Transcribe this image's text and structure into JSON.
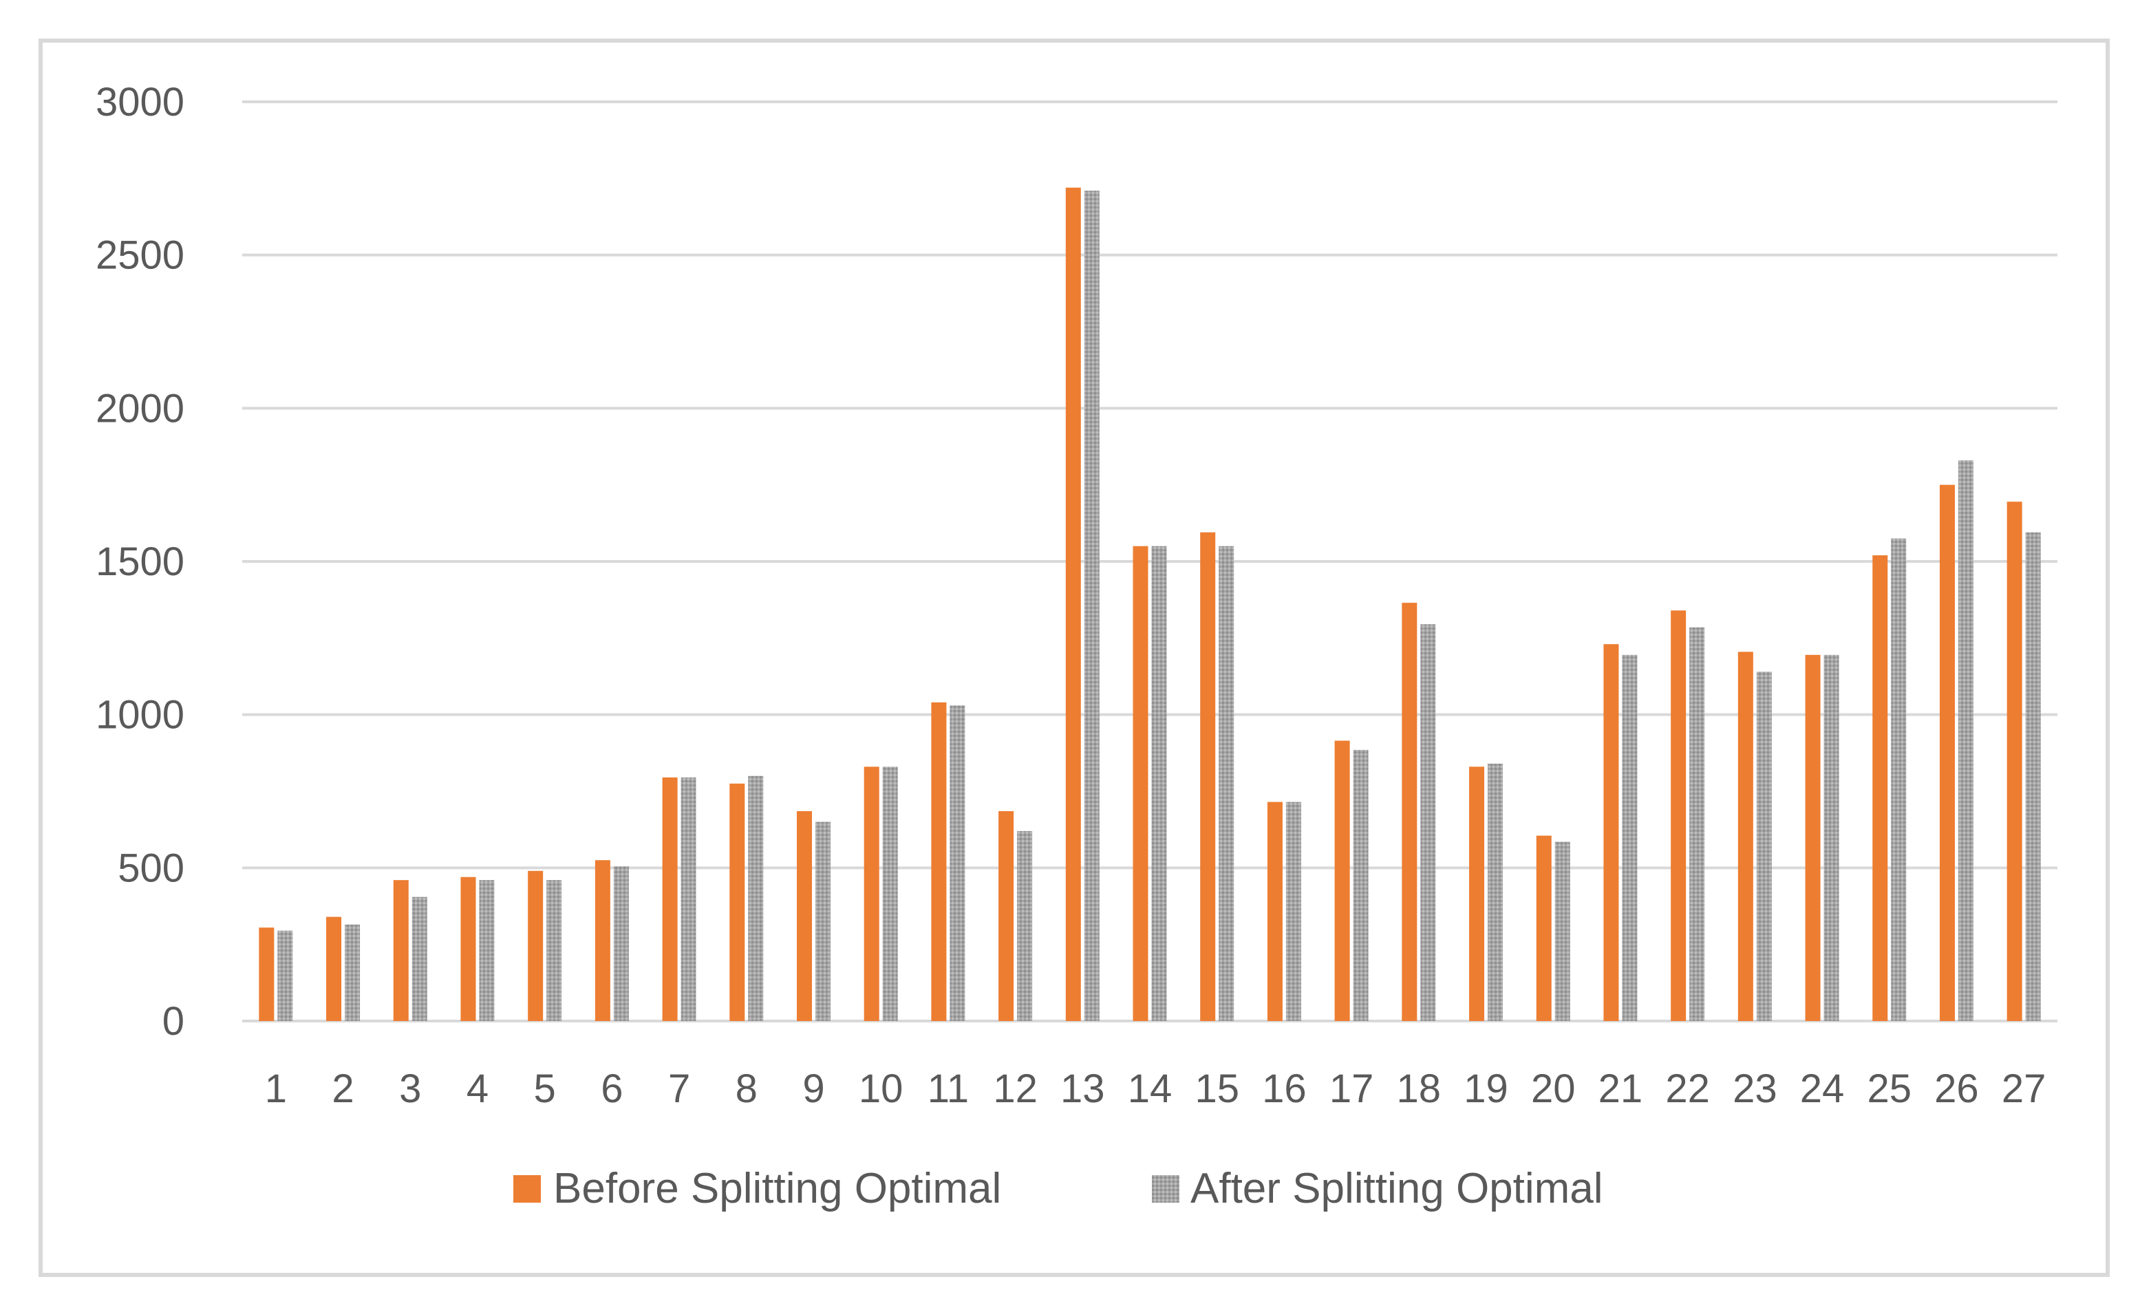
{
  "chart_data": {
    "type": "bar",
    "title": "",
    "xlabel": "",
    "ylabel": "",
    "ylim": [
      0,
      3000
    ],
    "yticks": [
      0,
      500,
      1000,
      1500,
      2000,
      2500,
      3000
    ],
    "grid": "horizontal",
    "legend_position": "bottom",
    "categories": [
      "1",
      "2",
      "3",
      "4",
      "5",
      "6",
      "7",
      "8",
      "9",
      "10",
      "11",
      "12",
      "13",
      "14",
      "15",
      "16",
      "17",
      "18",
      "19",
      "20",
      "21",
      "22",
      "23",
      "24",
      "25",
      "26",
      "27"
    ],
    "series": [
      {
        "name": "Before Splitting Optimal",
        "color": "#ED7D31",
        "pattern": "solid",
        "values": [
          305,
          340,
          460,
          470,
          490,
          525,
          795,
          775,
          685,
          830,
          1040,
          685,
          2720,
          1550,
          1595,
          715,
          915,
          1365,
          830,
          605,
          1230,
          1340,
          1205,
          1195,
          1520,
          1750,
          1695
        ]
      },
      {
        "name": "After Splitting Optimal",
        "color": "#A5A5A5",
        "pattern": "dotted",
        "values": [
          295,
          315,
          405,
          460,
          460,
          505,
          795,
          800,
          650,
          830,
          1030,
          620,
          2710,
          1550,
          1550,
          715,
          885,
          1295,
          840,
          585,
          1195,
          1285,
          1140,
          1195,
          1575,
          1830,
          1595
        ]
      }
    ]
  }
}
